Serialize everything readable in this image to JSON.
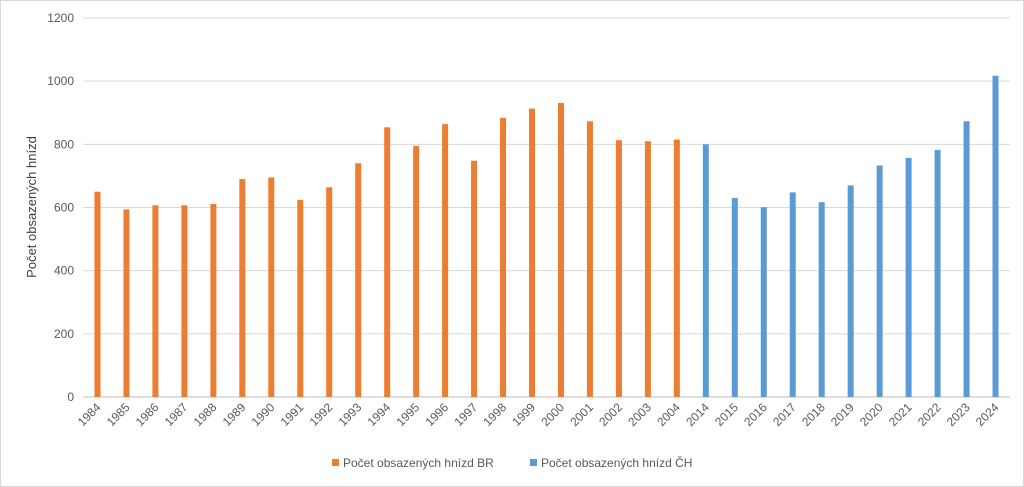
{
  "chart_data": {
    "type": "bar",
    "title": "",
    "xlabel": "",
    "ylabel": "Počet obsazených hnízd",
    "ylim": [
      0,
      1200
    ],
    "yticks": [
      0,
      200,
      400,
      600,
      800,
      1000,
      1200
    ],
    "grid": true,
    "legend_position": "bottom",
    "categories": [
      "1984",
      "1985",
      "1986",
      "1987",
      "1988",
      "1989",
      "1990",
      "1991",
      "1992",
      "1993",
      "1994",
      "1995",
      "1996",
      "1997",
      "1998",
      "1999",
      "2000",
      "2001",
      "2002",
      "2003",
      "2004",
      "2014",
      "2015",
      "2016",
      "2017",
      "2018",
      "2019",
      "2020",
      "2021",
      "2022",
      "2023",
      "2024"
    ],
    "series": [
      {
        "name": "Počet obsazených hnízd BR",
        "color": "#ed7d31",
        "values": [
          650,
          594,
          607,
          607,
          611,
          690,
          695,
          624,
          664,
          740,
          854,
          795,
          864,
          748,
          884,
          913,
          931,
          873,
          813,
          810,
          815,
          null,
          null,
          null,
          null,
          null,
          null,
          null,
          null,
          null,
          null,
          null
        ]
      },
      {
        "name": "Počet obsazených hnízd ČH",
        "color": "#5b9bd5",
        "values": [
          null,
          null,
          null,
          null,
          null,
          null,
          null,
          null,
          null,
          null,
          null,
          null,
          null,
          null,
          null,
          null,
          null,
          null,
          null,
          null,
          null,
          800,
          630,
          601,
          648,
          617,
          670,
          733,
          757,
          782,
          873,
          1017
        ]
      }
    ]
  }
}
